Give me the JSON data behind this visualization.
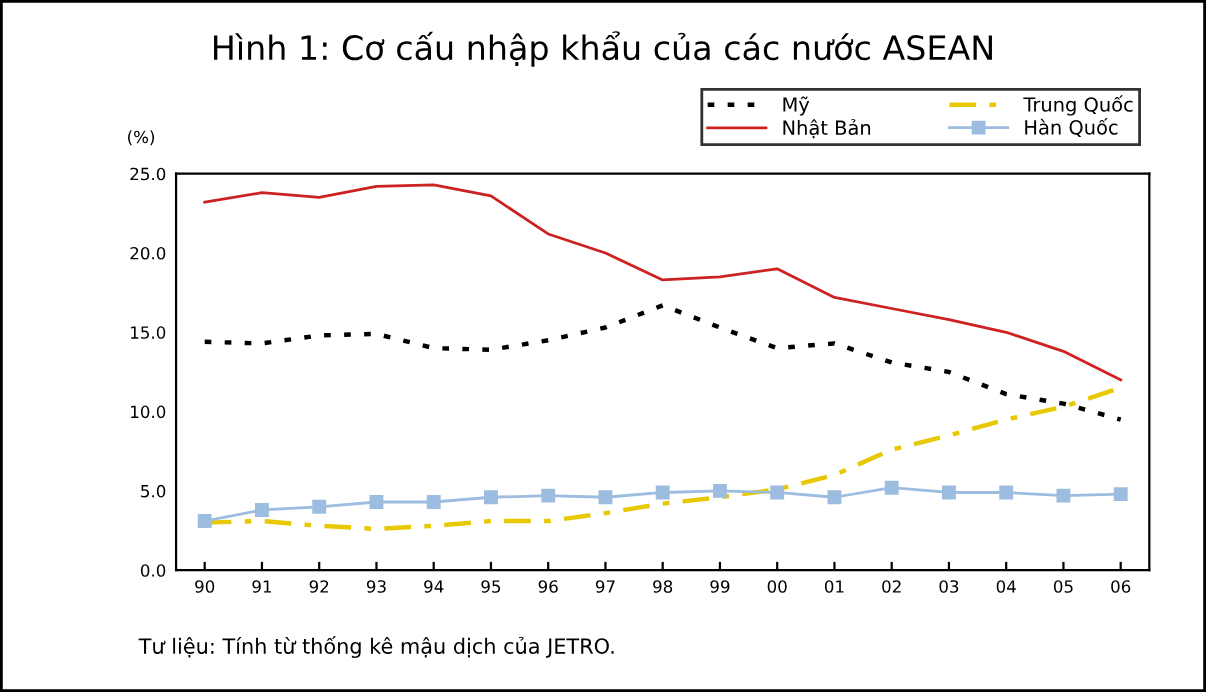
{
  "chart_data": {
    "type": "line",
    "title": "Hình 1: Cơ cấu nhập khẩu của các nước ASEAN",
    "ylabel": "(%)",
    "categories": [
      "90",
      "91",
      "92",
      "93",
      "94",
      "95",
      "96",
      "97",
      "98",
      "99",
      "00",
      "01",
      "02",
      "03",
      "04",
      "05",
      "06"
    ],
    "series": [
      {
        "name": "Mỹ",
        "color": "#000000",
        "line_style": "dotted",
        "marker": "none",
        "values": [
          14.4,
          14.3,
          14.8,
          14.9,
          14.0,
          13.9,
          14.5,
          15.3,
          16.7,
          15.3,
          14.0,
          14.3,
          13.1,
          12.5,
          11.1,
          10.5,
          9.5
        ]
      },
      {
        "name": "Nhật Bản",
        "color": "#cc2222",
        "line_style": "solid",
        "marker": "none",
        "values": [
          23.2,
          23.8,
          23.5,
          24.2,
          24.3,
          23.6,
          21.2,
          20.0,
          18.3,
          18.5,
          19.0,
          17.2,
          16.5,
          15.8,
          15.0,
          13.8,
          12.0
        ]
      },
      {
        "name": "Trung Quốc",
        "color": "#e8c800",
        "line_style": "dashed",
        "marker": "none",
        "values": [
          3.0,
          3.1,
          2.8,
          2.6,
          2.8,
          3.1,
          3.1,
          3.6,
          4.2,
          4.6,
          5.1,
          6.0,
          7.6,
          8.5,
          9.5,
          10.3,
          11.5
        ]
      },
      {
        "name": "Hàn Quốc",
        "color": "#9dbde0",
        "line_style": "solid",
        "marker": "square",
        "values": [
          3.1,
          3.8,
          4.0,
          4.3,
          4.3,
          4.6,
          4.7,
          4.6,
          4.9,
          5.0,
          4.9,
          4.6,
          5.2,
          4.9,
          4.9,
          4.7,
          4.8
        ]
      }
    ],
    "ylim": [
      0,
      25
    ],
    "yticks": [
      {
        "value": 0,
        "label": "0.0"
      },
      {
        "value": 5,
        "label": "5.0"
      },
      {
        "value": 10,
        "label": "10.0"
      },
      {
        "value": 15,
        "label": "15.0"
      },
      {
        "value": 20,
        "label": "20.0"
      },
      {
        "value": 25,
        "label": "25.0"
      }
    ],
    "grid": false,
    "legend": "top right",
    "annotations": [
      "Tư liệu: Tính từ thống kê mậu dịch của JETRO."
    ]
  }
}
